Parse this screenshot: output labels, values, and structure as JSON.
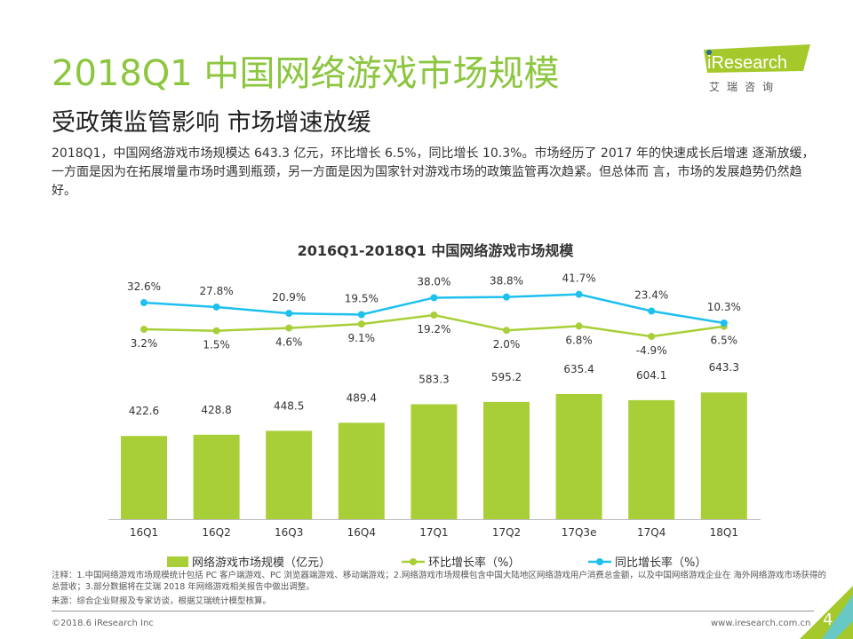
{
  "header": {
    "title": "2018Q1 中国网络游戏市场规模",
    "subtitle": "受政策监管影响 市场增速放缓",
    "description": "2018Q1，中国网络游戏市场规模达 643.3 亿元，环比增长 6.5%，同比增长 10.3%。市场经历了 2017 年的快速成长后增速 逐渐放缓，一方面是因为在拓展增量市场时遇到瓶颈，另一方面是因为国家针对游戏市场的政策监管再次趋紧。但总体而 言，市场的发展趋势仍然趋好。"
  },
  "logo": {
    "text": "iResearch",
    "subtext": "艾 瑞 咨 询",
    "color": "#a5c92b"
  },
  "chart_data": {
    "type": "bar+line",
    "title": "2016Q1-2018Q1 中国网络游戏市场规模",
    "categories": [
      "16Q1",
      "16Q2",
      "16Q3",
      "16Q4",
      "17Q1",
      "17Q2",
      "17Q3e",
      "17Q4",
      "18Q1"
    ],
    "series": [
      {
        "name": "网络游戏市场规模（亿元）",
        "type": "bar",
        "color": "#a8cf38",
        "values": [
          422.6,
          428.8,
          448.5,
          489.4,
          583.3,
          595.2,
          635.4,
          604.1,
          643.3
        ],
        "labels": [
          "422.6",
          "428.8",
          "448.5",
          "489.4",
          "583.3",
          "595.2",
          "635.4",
          "604.1",
          "643.3"
        ]
      },
      {
        "name": "环比增长率（%）",
        "type": "line",
        "color": "#a8cf38",
        "values": [
          3.2,
          1.5,
          4.6,
          9.1,
          19.2,
          2.0,
          6.8,
          -4.9,
          6.5
        ],
        "labels": [
          "3.2%",
          "1.5%",
          "4.6%",
          "9.1%",
          "19.2%",
          "2.0%",
          "6.8%",
          "-4.9%",
          "6.5%"
        ]
      },
      {
        "name": "同比增长率（%）",
        "type": "line",
        "color": "#1ec0ee",
        "values": [
          32.6,
          27.8,
          20.9,
          19.5,
          38.0,
          38.8,
          41.7,
          23.4,
          10.3
        ],
        "labels": [
          "32.6%",
          "27.8%",
          "20.9%",
          "19.5%",
          "38.0%",
          "38.8%",
          "41.7%",
          "23.4%",
          "10.3%"
        ]
      }
    ],
    "legend_position": "bottom",
    "grid": false
  },
  "notes": {
    "note": "注释：1.中国网络游戏市场规模统计包括 PC 客户端游戏、PC 浏览器端游戏、移动端游戏；2.网络游戏市场规模包含中国大陆地区网络游戏用户消费总金额，以及中国网络游戏企业在 海外网络游戏市场获得的总营收；3.部分数据将在艾瑞 2018 年网络游戏相关报告中做出调整。",
    "source": "来源：综合企业财报及专家访谈，根据艾瑞统计模型核算。"
  },
  "footer": {
    "copyright": "©2018.6 iResearch Inc",
    "website": "www.iresearch.com.cn",
    "page": "4"
  }
}
